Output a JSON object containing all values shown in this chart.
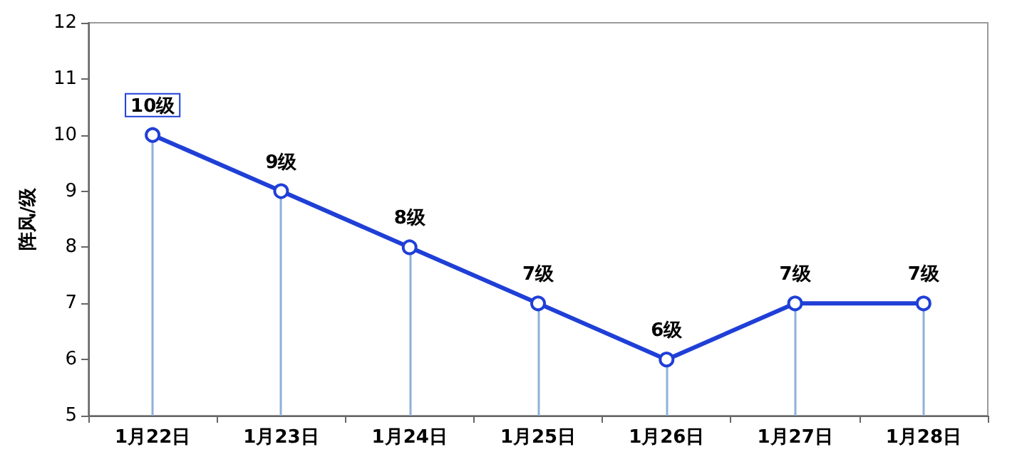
{
  "chart_data": {
    "type": "line",
    "ylabel": "阵风/级",
    "categories": [
      "1月22日",
      "1月23日",
      "1月24日",
      "1月25日",
      "1月26日",
      "1月27日",
      "1月28日"
    ],
    "series": [
      {
        "color": "#1f3fd6",
        "values": [
          10,
          9,
          8,
          7,
          6,
          7,
          7
        ],
        "value_labels": [
          "10级",
          "9级",
          "8级",
          "7级",
          "6级",
          "7级",
          "7级"
        ]
      }
    ],
    "ylim": [
      5,
      12
    ],
    "yticks": [
      5,
      6,
      7,
      8,
      9,
      10,
      11,
      12
    ],
    "marker": "circle",
    "line_style": "solid"
  }
}
